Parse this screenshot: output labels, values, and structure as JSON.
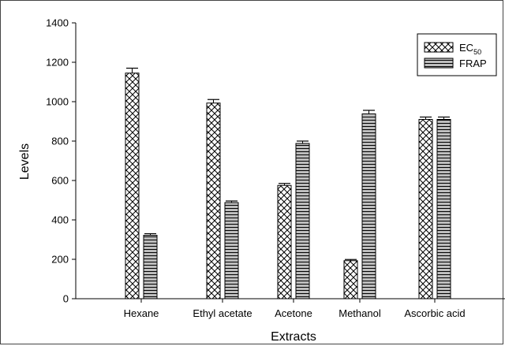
{
  "chart_data": {
    "type": "bar",
    "title": "",
    "xlabel": "Extracts",
    "ylabel": "Levels",
    "categories": [
      "Hexane",
      "Ethyl acetate",
      "Acetone",
      "Methanol",
      "Ascorbic acid"
    ],
    "ylim": [
      0,
      1400
    ],
    "yticks": [
      "0",
      "200",
      "400",
      "600",
      "800",
      "1000",
      "1200",
      "1400"
    ],
    "series": [
      {
        "name": "EC",
        "name_sub": "50",
        "pattern": "crosshatch",
        "values": [
          1145,
          993,
          575,
          193,
          910
        ],
        "errors": [
          25,
          18,
          10,
          6,
          12
        ]
      },
      {
        "name": "FRAP",
        "pattern": "horizontal-lines",
        "values": [
          322,
          488,
          788,
          938,
          910
        ],
        "errors": [
          8,
          8,
          12,
          18,
          12
        ]
      }
    ],
    "legend_position": "top-right",
    "grid": false
  }
}
